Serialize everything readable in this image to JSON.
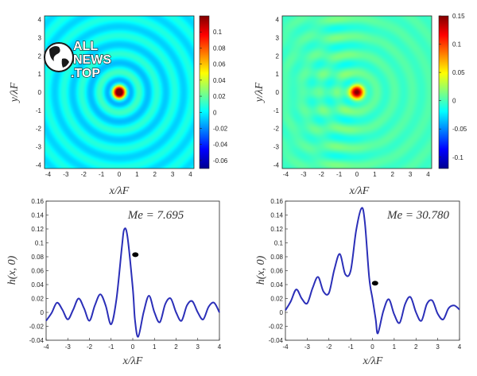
{
  "watermark": {
    "line1": "ALL",
    "line2": "NEWS",
    "line3": ".TOP",
    "icon": "globe-icon"
  },
  "colors": {
    "curve": "#2b2fb8",
    "marker": "#000000",
    "axis": "#222222"
  },
  "chart_data": [
    {
      "type": "heatmap",
      "panel": "top-left",
      "field": "circular-wave",
      "xlabel": "x/λF",
      "ylabel": "y/λF",
      "xlim": [
        -4.2,
        4.2
      ],
      "ylim": [
        -4.2,
        4.2
      ],
      "xticks": [
        "-4",
        "-3",
        "-2",
        "-1",
        "0",
        "1",
        "2",
        "3",
        "4"
      ],
      "yticks": [
        "-4",
        "-3",
        "-2",
        "-1",
        "0",
        "1",
        "2",
        "3",
        "4"
      ],
      "colorbar": {
        "range": [
          -0.07,
          0.12
        ],
        "ticks": [
          "0.1",
          "0.08",
          "0.06",
          "0.04",
          "0.02",
          "0",
          "-0.02",
          "-0.04",
          "-0.06"
        ]
      }
    },
    {
      "type": "heatmap",
      "panel": "top-right",
      "field": "wave-with-interference-trail",
      "xlabel": "x/λF",
      "ylabel": "y/λF",
      "xlim": [
        -4.2,
        4.2
      ],
      "ylim": [
        -4.2,
        4.2
      ],
      "xticks": [
        "-4",
        "-3",
        "-2",
        "-1",
        "0",
        "1",
        "2",
        "3",
        "4"
      ],
      "yticks": [
        "-4",
        "-3",
        "-2",
        "-1",
        "0",
        "1",
        "2",
        "3",
        "4"
      ],
      "colorbar": {
        "range": [
          -0.12,
          0.15
        ],
        "ticks": [
          "0.15",
          "0.1",
          "0.05",
          "0",
          "-0.05",
          "-0.1"
        ]
      }
    },
    {
      "type": "line",
      "panel": "bottom-left",
      "annotation": "Me = 7.695",
      "xlabel": "x/λF",
      "ylabel": "h(x, 0)",
      "xlim": [
        -4,
        4
      ],
      "ylim": [
        -0.04,
        0.16
      ],
      "xticks": [
        "-4",
        "-3",
        "-2",
        "-1",
        "0",
        "1",
        "2",
        "3",
        "4"
      ],
      "yticks": [
        "0.16",
        "0.14",
        "0.12",
        "0.1",
        "0.08",
        "0.06",
        "0.04",
        "0.02",
        "0",
        "-0.02",
        "-0.04"
      ],
      "series": [
        {
          "x": [
            -4,
            -3.75,
            -3.5,
            -3.25,
            -3,
            -2.75,
            -2.5,
            -2.25,
            -2,
            -1.75,
            -1.5,
            -1.25,
            -1,
            -0.75,
            -0.5,
            -0.4,
            -0.25,
            0,
            0.1,
            0.25,
            0.5,
            0.75,
            1,
            1.25,
            1.5,
            1.75,
            2,
            2.25,
            2.5,
            2.75,
            3,
            3.25,
            3.5,
            3.75,
            4
          ],
          "y": [
            -0.012,
            -0.001,
            0.014,
            0.004,
            -0.01,
            0.004,
            0.02,
            0.006,
            -0.012,
            0.01,
            0.026,
            0.01,
            -0.017,
            0.02,
            0.095,
            0.119,
            0.11,
            0.035,
            -0.01,
            -0.035,
            0.0,
            0.024,
            0.0,
            -0.014,
            0.012,
            0.02,
            0.0,
            -0.012,
            0.01,
            0.016,
            0.0,
            -0.01,
            0.008,
            0.014,
            0.0
          ]
        }
      ],
      "marker": {
        "x": 0.12,
        "y": 0.083
      }
    },
    {
      "type": "line",
      "panel": "bottom-right",
      "annotation": "Me = 30.780",
      "xlabel": "x/λF",
      "ylabel": "h(x, 0)",
      "xlim": [
        -4,
        4
      ],
      "ylim": [
        -0.04,
        0.16
      ],
      "xticks": [
        "-4",
        "-3",
        "-2",
        "-1",
        "0",
        "1",
        "2",
        "3",
        "4"
      ],
      "yticks": [
        "0.16",
        "0.14",
        "0.12",
        "0.1",
        "0.08",
        "0.06",
        "0.04",
        "0.02",
        "0",
        "-0.02",
        "-0.04"
      ],
      "series": [
        {
          "x": [
            -4,
            -3.75,
            -3.5,
            -3.25,
            -3,
            -2.75,
            -2.5,
            -2.25,
            -2,
            -1.75,
            -1.5,
            -1.25,
            -1,
            -0.75,
            -0.5,
            -0.35,
            -0.15,
            0,
            0.15,
            0.25,
            0.5,
            0.75,
            1,
            1.25,
            1.5,
            1.75,
            2,
            2.25,
            2.5,
            2.75,
            3,
            3.25,
            3.5,
            3.75,
            4
          ],
          "y": [
            0.003,
            0.016,
            0.033,
            0.02,
            0.013,
            0.035,
            0.051,
            0.03,
            0.028,
            0.062,
            0.084,
            0.055,
            0.06,
            0.118,
            0.15,
            0.13,
            0.05,
            0.02,
            -0.01,
            -0.03,
            0.002,
            0.019,
            -0.003,
            -0.015,
            0.012,
            0.022,
            0.0,
            -0.012,
            0.012,
            0.017,
            -0.002,
            -0.01,
            0.006,
            0.01,
            0.004
          ]
        }
      ],
      "marker": {
        "x": 0.12,
        "y": 0.042
      }
    }
  ]
}
